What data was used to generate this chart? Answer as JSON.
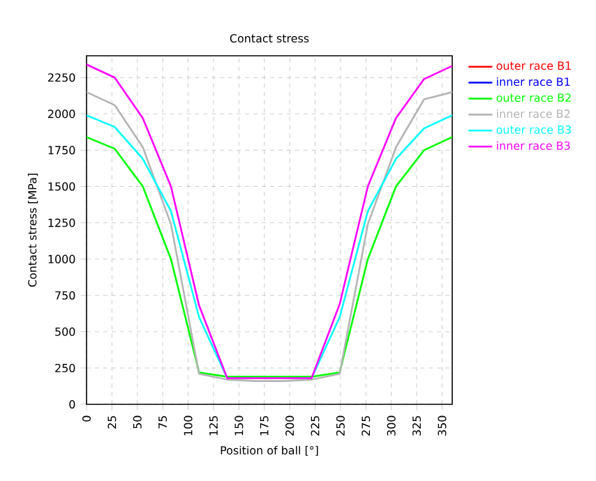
{
  "chart_data": {
    "type": "line",
    "title": "Contact stress",
    "xlabel": "Position of ball [°]",
    "ylabel": "Contact stress [MPa]",
    "x": [
      0,
      27.7,
      55.4,
      83.1,
      110.8,
      138.5,
      166.2,
      193.8,
      221.5,
      249.2,
      276.9,
      304.6,
      332.3,
      360
    ],
    "xlim": [
      0,
      360
    ],
    "xticks": [
      0,
      25,
      50,
      75,
      100,
      125,
      150,
      175,
      200,
      225,
      250,
      275,
      300,
      325,
      350
    ],
    "ylim": [
      0,
      2400
    ],
    "yticks": [
      0,
      250,
      500,
      750,
      1000,
      1250,
      1500,
      1750,
      2000,
      2250
    ],
    "grid": true,
    "legend": "right",
    "marker": "none",
    "line_style": "solid",
    "series": [
      {
        "name": "outer race B1",
        "color": "#ff0000",
        "values": [
          null,
          null,
          null,
          null,
          null,
          null,
          null,
          null,
          null,
          null,
          null,
          null,
          null,
          null
        ]
      },
      {
        "name": "inner race B1",
        "color": "#0000ff",
        "values": [
          null,
          null,
          null,
          null,
          null,
          null,
          null,
          null,
          null,
          null,
          null,
          null,
          null,
          null
        ]
      },
      {
        "name": "outer race B2",
        "color": "#00ff00",
        "values": [
          1840,
          1760,
          1500,
          1000,
          220,
          190,
          190,
          190,
          190,
          220,
          1000,
          1500,
          1750,
          1840
        ]
      },
      {
        "name": "inner race B2",
        "color": "#b4b4b4",
        "values": [
          2150,
          2060,
          1770,
          1240,
          210,
          170,
          160,
          160,
          170,
          210,
          1240,
          1770,
          2100,
          2150
        ]
      },
      {
        "name": "outer race B3",
        "color": "#00ffff",
        "values": [
          1990,
          1910,
          1690,
          1330,
          600,
          180,
          null,
          null,
          180,
          600,
          1330,
          1690,
          1900,
          1990
        ]
      },
      {
        "name": "inner race B3",
        "color": "#ff00ff",
        "values": [
          2340,
          2250,
          1970,
          1500,
          680,
          180,
          180,
          180,
          180,
          690,
          1500,
          1970,
          2240,
          2330
        ]
      }
    ]
  }
}
